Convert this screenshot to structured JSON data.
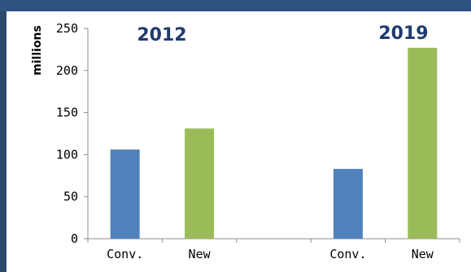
{
  "colors": {
    "border": "#2c4a6e",
    "header": "#2f5383",
    "conv": "#4f81bd",
    "new": "#9bbb59",
    "axis": "#8c8c8c",
    "grid": "#bfbfbf",
    "year_text": "#1f3a6e"
  },
  "chart_data": {
    "type": "bar",
    "title": "",
    "xlabel": "",
    "ylabel": "millions",
    "ylim": [
      0,
      250
    ],
    "yticks": [
      0,
      50,
      100,
      150,
      200,
      250
    ],
    "grid": false,
    "categories": [
      "Conv.",
      "New",
      "",
      "Conv.",
      "New"
    ],
    "values": [
      106,
      131,
      null,
      83,
      227
    ],
    "bar_colors": [
      "#4f81bd",
      "#9bbb59",
      null,
      "#4f81bd",
      "#9bbb59"
    ],
    "annotations": [
      "2012",
      "2019"
    ]
  }
}
